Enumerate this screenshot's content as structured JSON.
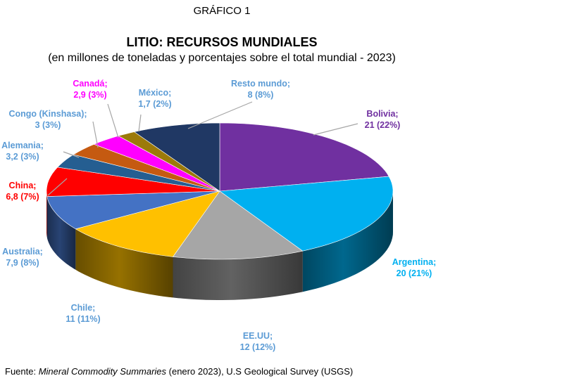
{
  "header": {
    "figure_label": "GRÁFICO 1",
    "title": "LITIO: RECURSOS MUNDIALES",
    "subtitle": "(en millones de toneladas y porcentajes sobre el total mundial - 2023)"
  },
  "chart_data": {
    "type": "pie",
    "style": "3d",
    "title": "LITIO: RECURSOS MUNDIALES",
    "unit": "millones de toneladas",
    "slices": [
      {
        "name": "Bolivia",
        "value": 21,
        "value_label": "21",
        "percent": 22,
        "color": "#7030A0",
        "label_color": "#7030A0"
      },
      {
        "name": "Argentina",
        "value": 20,
        "value_label": "20",
        "percent": 21,
        "color": "#00B0F0",
        "label_color": "#00B0F0"
      },
      {
        "name": "EE.UU",
        "value": 12,
        "value_label": "12",
        "percent": 12,
        "color": "#A6A6A6",
        "label_color": "#5B9BD5"
      },
      {
        "name": "Chile",
        "value": 11,
        "value_label": "11",
        "percent": 11,
        "color": "#FFC000",
        "label_color": "#5B9BD5"
      },
      {
        "name": "Australia",
        "value": 7.9,
        "value_label": "7,9",
        "percent": 8,
        "color": "#4472C4",
        "label_color": "#5B9BD5"
      },
      {
        "name": "China",
        "value": 6.8,
        "value_label": "6,8",
        "percent": 7,
        "color": "#FF0000",
        "label_color": "#FF0000"
      },
      {
        "name": "Alemania",
        "value": 3.2,
        "value_label": "3,2",
        "percent": 3,
        "color": "#255E91",
        "label_color": "#5B9BD5"
      },
      {
        "name": "Congo (Kinshasa)",
        "value": 3,
        "value_label": "3",
        "percent": 3,
        "color": "#C55A11",
        "label_color": "#5B9BD5"
      },
      {
        "name": "Canadá",
        "value": 2.9,
        "value_label": "2,9",
        "percent": 3,
        "color": "#FF00FF",
        "label_color": "#FF00FF"
      },
      {
        "name": "México",
        "value": 1.7,
        "value_label": "1,7",
        "percent": 2,
        "color": "#9C7A0A",
        "label_color": "#5B9BD5"
      },
      {
        "name": "Resto mundo",
        "value": 8,
        "value_label": "8",
        "percent": 8,
        "color": "#203864",
        "label_color": "#5B9BD5"
      }
    ]
  },
  "footer": {
    "source_prefix": "Fuente: ",
    "source_title": "Mineral Commodity Summaries",
    "source_suffix": " (enero 2023), U.S Geological Survey (USGS)"
  }
}
